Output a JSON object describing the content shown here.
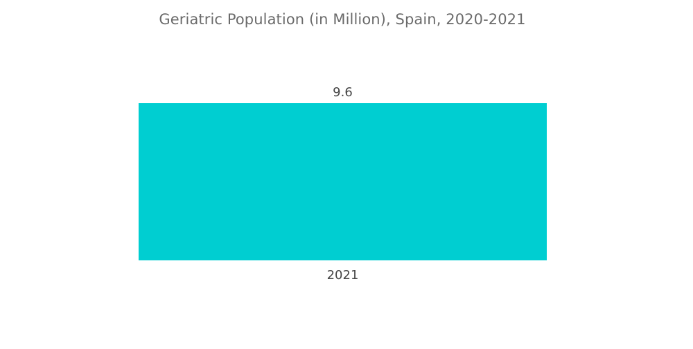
{
  "chart_data": {
    "type": "bar",
    "title": "Geriatric Population (in Million), Spain, 2020-2021",
    "categories": [
      "2021"
    ],
    "values": [
      9.6
    ],
    "xlabel": "",
    "ylabel": "",
    "ylim": [
      0,
      9.6
    ],
    "grid": false,
    "legend": "none",
    "colors": {
      "bar": "#00CED1",
      "title": "#6b6b6b",
      "label": "#444444"
    }
  }
}
